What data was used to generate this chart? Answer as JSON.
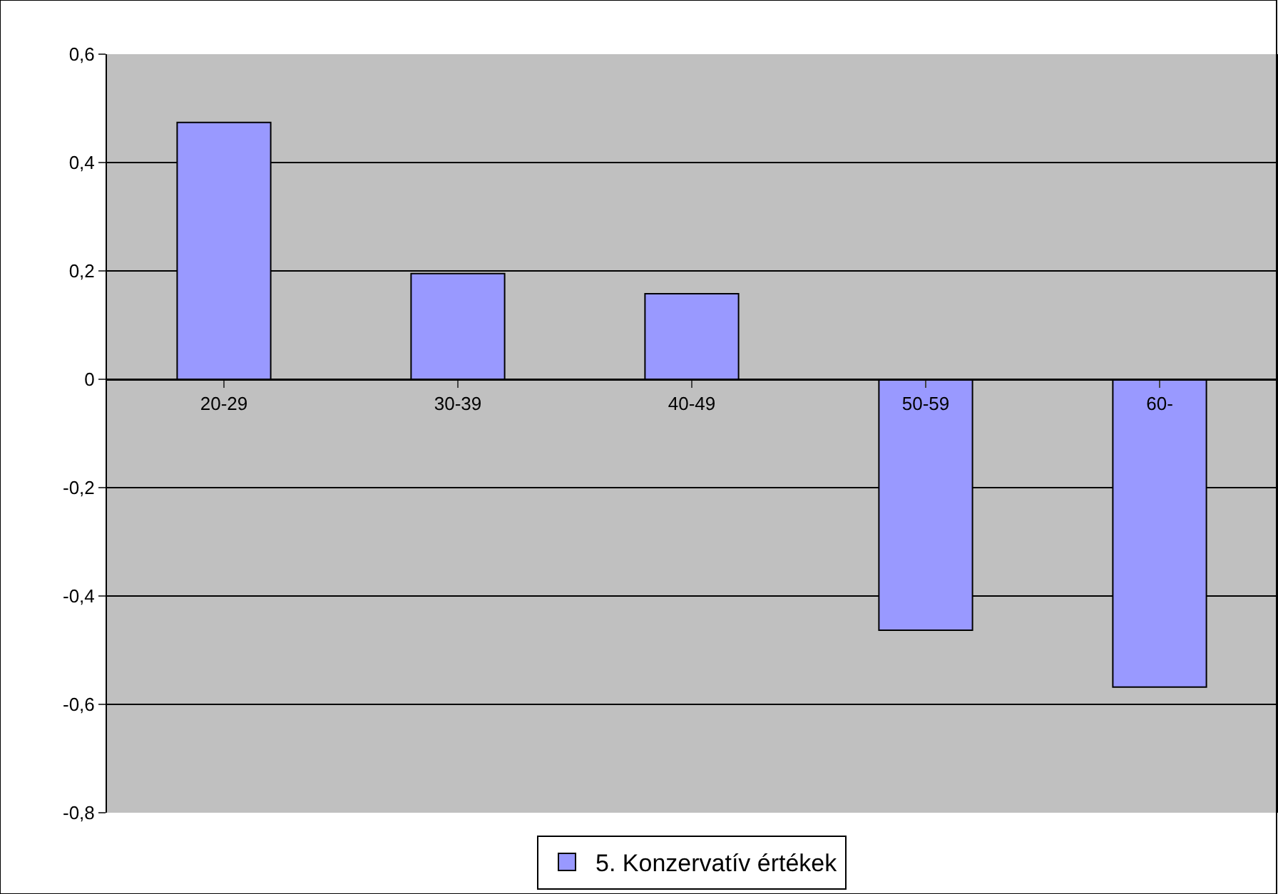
{
  "chart_data": {
    "type": "bar",
    "categories": [
      "20-29",
      "30-39",
      "40-49",
      "50-59",
      "60-"
    ],
    "series": [
      {
        "name": "5. Konzervatív értékek",
        "color": "#9999ff",
        "values": [
          0.474,
          0.195,
          0.158,
          -0.463,
          -0.568
        ]
      }
    ],
    "ylim": [
      -0.8,
      0.6
    ],
    "yticks": [
      {
        "value": -0.8,
        "label": "-0,8"
      },
      {
        "value": -0.6,
        "label": "-0,6"
      },
      {
        "value": -0.4,
        "label": "-0,4"
      },
      {
        "value": -0.2,
        "label": "-0,2"
      },
      {
        "value": 0,
        "label": "0"
      },
      {
        "value": 0.2,
        "label": "0,2"
      },
      {
        "value": 0.4,
        "label": "0,4"
      },
      {
        "value": 0.6,
        "label": "0,6"
      }
    ],
    "grid": "y",
    "legend": "bottom"
  }
}
